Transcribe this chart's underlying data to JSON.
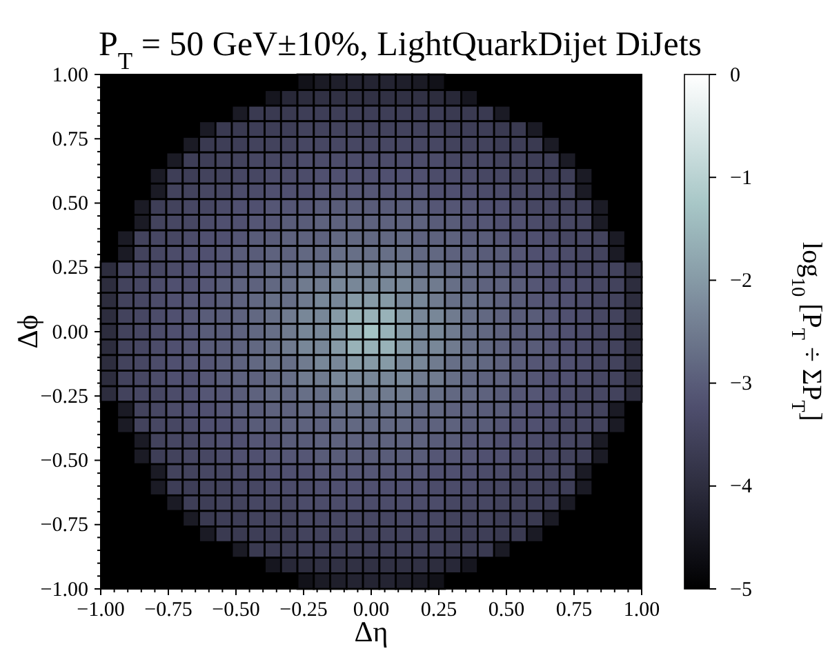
{
  "chart_data": {
    "type": "heatmap",
    "title": "P$_{T}$ = 50 GeV±10%, LightQuarkDijet DiJets",
    "xlabel": "Δη",
    "ylabel": "Δϕ",
    "clabel": "log$_{10}$ [P$_{T}$ ÷ ΣP$_{T}$]",
    "xlim": [
      -1,
      1
    ],
    "ylim": [
      -1,
      1
    ],
    "clim": [
      -5,
      0
    ],
    "cticks": [
      {
        "value": -5,
        "label": "−5"
      },
      {
        "value": -4,
        "label": "−4"
      },
      {
        "value": -3,
        "label": "−3"
      },
      {
        "value": -2,
        "label": "−2"
      },
      {
        "value": -1,
        "label": "−1"
      },
      0
    ],
    "xticks": [
      {
        "value": -1,
        "label": "−1.00"
      },
      {
        "value": -0.95,
        "label": null
      },
      {
        "value": -0.9,
        "label": null
      },
      {
        "value": -0.85,
        "label": null
      },
      {
        "value": -0.8,
        "label": null
      },
      {
        "value": -0.75,
        "label": "−0.75"
      },
      {
        "value": -0.7,
        "label": null
      },
      {
        "value": -0.65,
        "label": null
      },
      {
        "value": -0.6,
        "label": null
      },
      {
        "value": -0.55,
        "label": null
      },
      {
        "value": -0.5,
        "label": "−0.50"
      },
      {
        "value": -0.45,
        "label": null
      },
      {
        "value": -0.4,
        "label": null
      },
      {
        "value": -0.35,
        "label": null
      },
      {
        "value": -0.3,
        "label": null
      },
      {
        "value": -0.25,
        "label": "−0.25"
      },
      {
        "value": -0.2,
        "label": null
      },
      {
        "value": -0.15,
        "label": null
      },
      {
        "value": -0.1,
        "label": null
      },
      {
        "value": -0.05,
        "label": null
      },
      {
        "value": 0,
        "label": "0.00"
      },
      {
        "value": 0.05,
        "label": null
      },
      {
        "value": 0.1,
        "label": null
      },
      {
        "value": 0.15,
        "label": null
      },
      {
        "value": 0.2,
        "label": null
      },
      {
        "value": 0.25,
        "label": "0.25"
      },
      {
        "value": 0.3,
        "label": null
      },
      {
        "value": 0.35,
        "label": null
      },
      {
        "value": 0.4,
        "label": null
      },
      {
        "value": 0.45,
        "label": null
      },
      {
        "value": 0.5,
        "label": "0.50"
      },
      {
        "value": 0.55,
        "label": null
      },
      {
        "value": 0.6,
        "label": null
      },
      {
        "value": 0.65,
        "label": null
      },
      {
        "value": 0.7,
        "label": null
      },
      {
        "value": 0.75,
        "label": "0.75"
      },
      {
        "value": 0.8,
        "label": null
      },
      {
        "value": 0.85,
        "label": null
      },
      {
        "value": 0.9,
        "label": null
      },
      {
        "value": 0.95,
        "label": null
      },
      {
        "value": 1,
        "label": "1.00"
      }
    ],
    "yticks": [
      {
        "value": -1,
        "label": "−1.00"
      },
      {
        "value": -0.95,
        "label": null
      },
      {
        "value": -0.9,
        "label": null
      },
      {
        "value": -0.85,
        "label": null
      },
      {
        "value": -0.8,
        "label": null
      },
      {
        "value": -0.75,
        "label": "−0.75"
      },
      {
        "value": -0.7,
        "label": null
      },
      {
        "value": -0.65,
        "label": null
      },
      {
        "value": -0.6,
        "label": null
      },
      {
        "value": -0.55,
        "label": null
      },
      {
        "value": -0.5,
        "label": "−0.50"
      },
      {
        "value": -0.45,
        "label": null
      },
      {
        "value": -0.4,
        "label": null
      },
      {
        "value": -0.35,
        "label": null
      },
      {
        "value": -0.3,
        "label": null
      },
      {
        "value": -0.25,
        "label": "−0.25"
      },
      {
        "value": -0.2,
        "label": null
      },
      {
        "value": -0.15,
        "label": null
      },
      {
        "value": -0.1,
        "label": null
      },
      {
        "value": -0.05,
        "label": null
      },
      {
        "value": 0,
        "label": "0.00"
      },
      {
        "value": 0.05,
        "label": null
      },
      {
        "value": 0.1,
        "label": null
      },
      {
        "value": 0.15,
        "label": null
      },
      {
        "value": 0.2,
        "label": null
      },
      {
        "value": 0.25,
        "label": "0.25"
      },
      {
        "value": 0.3,
        "label": null
      },
      {
        "value": 0.35,
        "label": null
      },
      {
        "value": 0.4,
        "label": null
      },
      {
        "value": 0.45,
        "label": null
      },
      {
        "value": 0.5,
        "label": "0.50"
      },
      {
        "value": 0.55,
        "label": null
      },
      {
        "value": 0.6,
        "label": null
      },
      {
        "value": 0.65,
        "label": null
      },
      {
        "value": 0.7,
        "label": null
      },
      {
        "value": 0.75,
        "label": "0.75"
      },
      {
        "value": 0.8,
        "label": null
      },
      {
        "value": 0.85,
        "label": null
      },
      {
        "value": 0.9,
        "label": null
      },
      {
        "value": 0.95,
        "label": null
      },
      {
        "value": 1,
        "label": "1.00"
      }
    ],
    "cells": [
      [
        null,
        null,
        null,
        null,
        null,
        null,
        null,
        null,
        null,
        null,
        null,
        null,
        -4.6,
        -4.4,
        -4.3,
        -4.2,
        -4.2,
        -4.2,
        -4.3,
        -4.4,
        -4.6,
        null,
        null,
        null,
        null,
        null,
        null,
        null,
        null,
        null,
        null,
        null,
        null
      ],
      [
        null,
        null,
        null,
        null,
        null,
        null,
        null,
        null,
        null,
        null,
        -4.5,
        -4.1,
        -4.0,
        -3.9,
        -3.9,
        -3.9,
        -3.9,
        -3.9,
        -3.9,
        -3.9,
        -4.0,
        -4.1,
        -4.5,
        null,
        null,
        null,
        null,
        null,
        null,
        null,
        null,
        null,
        null
      ],
      [
        null,
        null,
        null,
        null,
        null,
        null,
        null,
        null,
        -4.4,
        -3.7,
        -3.7,
        -3.7,
        -3.6,
        -3.6,
        -3.6,
        -3.6,
        -3.6,
        -3.6,
        -3.6,
        -3.6,
        -3.6,
        -3.7,
        -3.7,
        -3.7,
        -4.4,
        null,
        null,
        null,
        null,
        null,
        null,
        null,
        null
      ],
      [
        null,
        null,
        null,
        null,
        null,
        null,
        -4.4,
        -3.7,
        -3.7,
        -3.6,
        -3.6,
        -3.6,
        -3.5,
        -3.5,
        -3.5,
        -3.5,
        -3.5,
        -3.5,
        -3.5,
        -3.5,
        -3.5,
        -3.6,
        -3.6,
        -3.6,
        -3.7,
        -3.7,
        -4.4,
        null,
        null,
        null,
        null,
        null,
        null
      ],
      [
        null,
        null,
        null,
        null,
        null,
        -4.4,
        -3.7,
        -3.6,
        -3.6,
        -3.5,
        -3.5,
        -3.5,
        -3.4,
        -3.4,
        -3.4,
        -3.4,
        -3.4,
        -3.4,
        -3.4,
        -3.4,
        -3.4,
        -3.5,
        -3.5,
        -3.5,
        -3.6,
        -3.6,
        -3.7,
        -4.4,
        null,
        null,
        null,
        null,
        null
      ],
      [
        null,
        null,
        null,
        null,
        -4.4,
        -3.6,
        -3.6,
        -3.5,
        -3.5,
        -3.4,
        -3.4,
        -3.4,
        -3.3,
        -3.3,
        -3.3,
        -3.3,
        -3.3,
        -3.3,
        -3.3,
        -3.3,
        -3.3,
        -3.4,
        -3.4,
        -3.4,
        -3.5,
        -3.5,
        -3.6,
        -3.6,
        -4.4,
        null,
        null,
        null,
        null
      ],
      [
        null,
        null,
        null,
        -4.4,
        -3.6,
        -3.6,
        -3.5,
        -3.5,
        -3.4,
        -3.4,
        -3.3,
        -3.3,
        -3.3,
        -3.2,
        -3.2,
        -3.2,
        -3.2,
        -3.2,
        -3.2,
        -3.2,
        -3.3,
        -3.3,
        -3.3,
        -3.4,
        -3.4,
        -3.5,
        -3.5,
        -3.6,
        -3.6,
        -4.4,
        null,
        null,
        null
      ],
      [
        null,
        null,
        null,
        -4.4,
        -3.5,
        -3.5,
        -3.4,
        -3.4,
        -3.3,
        -3.3,
        -3.2,
        -3.2,
        -3.2,
        -3.1,
        -3.1,
        -3.1,
        -3.1,
        -3.1,
        -3.1,
        -3.1,
        -3.2,
        -3.2,
        -3.2,
        -3.3,
        -3.3,
        -3.4,
        -3.4,
        -3.5,
        -3.5,
        -4.4,
        null,
        null,
        null
      ],
      [
        null,
        null,
        -4.4,
        -3.6,
        -3.5,
        -3.4,
        -3.4,
        -3.3,
        -3.2,
        -3.2,
        -3.1,
        -3.1,
        -3.1,
        -3.0,
        -3.0,
        -3.0,
        -3.0,
        -3.0,
        -3.0,
        -3.0,
        -3.1,
        -3.1,
        -3.1,
        -3.2,
        -3.2,
        -3.3,
        -3.4,
        -3.4,
        -3.5,
        -3.6,
        -4.4,
        null,
        null
      ],
      [
        null,
        null,
        -4.4,
        -3.5,
        -3.4,
        -3.4,
        -3.3,
        -3.2,
        -3.2,
        -3.1,
        -3.1,
        -3.0,
        -3.0,
        -2.9,
        -2.9,
        -2.9,
        -2.9,
        -2.9,
        -2.9,
        -2.9,
        -3.0,
        -3.0,
        -3.1,
        -3.1,
        -3.2,
        -3.2,
        -3.3,
        -3.4,
        -3.4,
        -3.5,
        -4.4,
        null,
        null
      ],
      [
        null,
        -4.4,
        -3.5,
        -3.4,
        -3.4,
        -3.3,
        -3.2,
        -3.2,
        -3.1,
        -3.0,
        -3.0,
        -2.9,
        -2.9,
        -2.9,
        -2.8,
        -2.8,
        -2.8,
        -2.8,
        -2.8,
        -2.9,
        -2.9,
        -2.9,
        -3.0,
        -3.0,
        -3.1,
        -3.2,
        -3.2,
        -3.3,
        -3.4,
        -3.4,
        -3.5,
        -4.4,
        null
      ],
      [
        null,
        -4.4,
        -3.5,
        -3.4,
        -3.3,
        -3.2,
        -3.2,
        -3.1,
        -3.0,
        -3.0,
        -2.9,
        -2.9,
        -2.8,
        -2.8,
        -2.7,
        -2.7,
        -2.7,
        -2.7,
        -2.7,
        -2.8,
        -2.8,
        -2.9,
        -2.9,
        -3.0,
        -3.0,
        -3.1,
        -3.2,
        -3.2,
        -3.3,
        -3.4,
        -3.5,
        -4.4,
        null
      ],
      [
        -4.0,
        -3.5,
        -3.4,
        -3.4,
        -3.3,
        -3.2,
        -3.1,
        -3.1,
        -3.0,
        -2.9,
        -2.8,
        -2.8,
        -2.7,
        -2.7,
        -2.5,
        -2.5,
        -2.5,
        -2.5,
        -2.5,
        -2.7,
        -2.7,
        -2.8,
        -2.8,
        -2.9,
        -3.0,
        -3.1,
        -3.1,
        -3.2,
        -3.3,
        -3.4,
        -3.4,
        -3.5,
        -4.0
      ],
      [
        -4.0,
        -3.5,
        -3.4,
        -3.3,
        -3.2,
        -3.2,
        -3.1,
        -3.0,
        -2.9,
        -2.9,
        -2.8,
        -2.7,
        -2.5,
        -2.5,
        -2.3,
        -2.3,
        -2.3,
        -2.3,
        -2.3,
        -2.5,
        -2.5,
        -2.7,
        -2.8,
        -2.9,
        -2.9,
        -3.0,
        -3.1,
        -3.2,
        -3.2,
        -3.3,
        -3.4,
        -3.5,
        -4.0
      ],
      [
        -4.0,
        -3.5,
        -3.4,
        -3.3,
        -3.2,
        -3.1,
        -3.1,
        -3.0,
        -2.9,
        -2.8,
        -2.7,
        -2.7,
        -2.5,
        -2.3,
        -2.3,
        -2.0,
        -2.0,
        -2.0,
        -2.3,
        -2.3,
        -2.5,
        -2.7,
        -2.7,
        -2.8,
        -2.9,
        -3.0,
        -3.1,
        -3.1,
        -3.2,
        -3.3,
        -3.4,
        -3.5,
        -4.0
      ],
      [
        -4.0,
        -3.5,
        -3.4,
        -3.3,
        -3.2,
        -3.1,
        -3.0,
        -3.0,
        -2.9,
        -2.8,
        -2.7,
        -2.5,
        -2.3,
        -2.3,
        -2.0,
        -1.6,
        -1.6,
        -1.6,
        -2.0,
        -2.3,
        -2.3,
        -2.5,
        -2.7,
        -2.8,
        -2.9,
        -3.0,
        -3.0,
        -3.1,
        -3.2,
        -3.3,
        -3.4,
        -3.5,
        -4.0
      ],
      [
        -4.0,
        -3.5,
        -3.4,
        -3.3,
        -3.2,
        -3.1,
        -3.0,
        -3.0,
        -2.9,
        -2.8,
        -2.7,
        -2.5,
        -2.3,
        -2.3,
        -2.0,
        -1.6,
        -1.3,
        -1.6,
        -2.0,
        -2.3,
        -2.3,
        -2.5,
        -2.7,
        -2.8,
        -2.9,
        -3.0,
        -3.0,
        -3.1,
        -3.2,
        -3.3,
        -3.4,
        -3.5,
        -4.0
      ],
      [
        -4.0,
        -3.5,
        -3.4,
        -3.3,
        -3.2,
        -3.1,
        -3.0,
        -3.0,
        -2.9,
        -2.8,
        -2.7,
        -2.5,
        -2.3,
        -2.3,
        -2.0,
        -1.6,
        -1.6,
        -1.6,
        -2.0,
        -2.3,
        -2.3,
        -2.5,
        -2.7,
        -2.8,
        -2.9,
        -3.0,
        -3.0,
        -3.1,
        -3.2,
        -3.3,
        -3.4,
        -3.5,
        -4.0
      ],
      [
        -4.0,
        -3.5,
        -3.4,
        -3.3,
        -3.2,
        -3.1,
        -3.1,
        -3.0,
        -2.9,
        -2.8,
        -2.7,
        -2.7,
        -2.5,
        -2.3,
        -2.3,
        -2.0,
        -2.0,
        -2.0,
        -2.3,
        -2.3,
        -2.5,
        -2.7,
        -2.7,
        -2.8,
        -2.9,
        -3.0,
        -3.1,
        -3.1,
        -3.2,
        -3.3,
        -3.4,
        -3.5,
        -4.0
      ],
      [
        -4.0,
        -3.5,
        -3.4,
        -3.3,
        -3.2,
        -3.2,
        -3.1,
        -3.0,
        -2.9,
        -2.9,
        -2.8,
        -2.7,
        -2.5,
        -2.5,
        -2.3,
        -2.3,
        -2.3,
        -2.3,
        -2.3,
        -2.5,
        -2.5,
        -2.7,
        -2.8,
        -2.9,
        -2.9,
        -3.0,
        -3.1,
        -3.2,
        -3.2,
        -3.3,
        -3.4,
        -3.5,
        -4.0
      ],
      [
        -4.0,
        -3.5,
        -3.4,
        -3.4,
        -3.3,
        -3.2,
        -3.1,
        -3.1,
        -3.0,
        -2.9,
        -2.8,
        -2.8,
        -2.7,
        -2.7,
        -2.5,
        -2.5,
        -2.5,
        -2.5,
        -2.5,
        -2.7,
        -2.7,
        -2.8,
        -2.8,
        -2.9,
        -3.0,
        -3.1,
        -3.1,
        -3.2,
        -3.3,
        -3.4,
        -3.4,
        -3.5,
        -4.0
      ],
      [
        null,
        -4.4,
        -3.5,
        -3.4,
        -3.3,
        -3.2,
        -3.2,
        -3.1,
        -3.0,
        -3.0,
        -2.9,
        -2.9,
        -2.8,
        -2.8,
        -2.7,
        -2.7,
        -2.7,
        -2.7,
        -2.7,
        -2.8,
        -2.8,
        -2.9,
        -2.9,
        -3.0,
        -3.0,
        -3.1,
        -3.2,
        -3.2,
        -3.3,
        -3.4,
        -3.5,
        -4.4,
        null
      ],
      [
        null,
        -4.4,
        -3.5,
        -3.4,
        -3.4,
        -3.3,
        -3.2,
        -3.2,
        -3.1,
        -3.0,
        -3.0,
        -2.9,
        -2.9,
        -2.9,
        -2.8,
        -2.8,
        -2.8,
        -2.8,
        -2.8,
        -2.9,
        -2.9,
        -2.9,
        -3.0,
        -3.0,
        -3.1,
        -3.2,
        -3.2,
        -3.3,
        -3.4,
        -3.4,
        -3.5,
        -4.4,
        null
      ],
      [
        null,
        null,
        -4.4,
        -3.5,
        -3.4,
        -3.4,
        -3.3,
        -3.2,
        -3.2,
        -3.1,
        -3.1,
        -3.0,
        -3.0,
        -2.9,
        -2.9,
        -2.9,
        -2.9,
        -2.9,
        -2.9,
        -2.9,
        -3.0,
        -3.0,
        -3.1,
        -3.1,
        -3.2,
        -3.2,
        -3.3,
        -3.4,
        -3.4,
        -3.5,
        -4.4,
        null,
        null
      ],
      [
        null,
        null,
        -4.4,
        -3.6,
        -3.5,
        -3.4,
        -3.4,
        -3.3,
        -3.2,
        -3.2,
        -3.1,
        -3.1,
        -3.1,
        -3.0,
        -3.0,
        -3.0,
        -3.0,
        -3.0,
        -3.0,
        -3.0,
        -3.1,
        -3.1,
        -3.1,
        -3.2,
        -3.2,
        -3.3,
        -3.4,
        -3.4,
        -3.5,
        -3.6,
        -4.4,
        null,
        null
      ],
      [
        null,
        null,
        null,
        -4.4,
        -3.5,
        -3.5,
        -3.4,
        -3.4,
        -3.3,
        -3.3,
        -3.2,
        -3.2,
        -3.2,
        -3.1,
        -3.1,
        -3.1,
        -3.1,
        -3.1,
        -3.1,
        -3.1,
        -3.2,
        -3.2,
        -3.2,
        -3.3,
        -3.3,
        -3.4,
        -3.4,
        -3.5,
        -3.5,
        -4.4,
        null,
        null,
        null
      ],
      [
        null,
        null,
        null,
        -4.4,
        -3.6,
        -3.6,
        -3.5,
        -3.5,
        -3.4,
        -3.4,
        -3.3,
        -3.3,
        -3.3,
        -3.2,
        -3.2,
        -3.2,
        -3.2,
        -3.2,
        -3.2,
        -3.2,
        -3.3,
        -3.3,
        -3.3,
        -3.4,
        -3.4,
        -3.5,
        -3.5,
        -3.6,
        -3.6,
        -4.4,
        null,
        null,
        null
      ],
      [
        null,
        null,
        null,
        null,
        -4.4,
        -3.6,
        -3.6,
        -3.5,
        -3.5,
        -3.4,
        -3.4,
        -3.4,
        -3.3,
        -3.3,
        -3.3,
        -3.3,
        -3.3,
        -3.3,
        -3.3,
        -3.3,
        -3.3,
        -3.4,
        -3.4,
        -3.4,
        -3.5,
        -3.5,
        -3.6,
        -3.6,
        -4.4,
        null,
        null,
        null,
        null
      ],
      [
        null,
        null,
        null,
        null,
        null,
        -4.4,
        -3.7,
        -3.6,
        -3.6,
        -3.5,
        -3.5,
        -3.5,
        -3.4,
        -3.4,
        -3.4,
        -3.4,
        -3.4,
        -3.4,
        -3.4,
        -3.4,
        -3.4,
        -3.5,
        -3.5,
        -3.5,
        -3.6,
        -3.6,
        -3.7,
        -4.4,
        null,
        null,
        null,
        null,
        null
      ],
      [
        null,
        null,
        null,
        null,
        null,
        null,
        -4.4,
        -3.7,
        -3.7,
        -3.6,
        -3.6,
        -3.6,
        -3.5,
        -3.5,
        -3.5,
        -3.5,
        -3.5,
        -3.5,
        -3.5,
        -3.5,
        -3.5,
        -3.6,
        -3.6,
        -3.6,
        -3.7,
        -3.7,
        -4.4,
        null,
        null,
        null,
        null,
        null,
        null
      ],
      [
        null,
        null,
        null,
        null,
        null,
        null,
        null,
        null,
        -4.4,
        -3.7,
        -3.7,
        -3.7,
        -3.6,
        -3.6,
        -3.6,
        -3.6,
        -3.6,
        -3.6,
        -3.6,
        -3.6,
        -3.6,
        -3.7,
        -3.7,
        -3.7,
        -4.4,
        null,
        null,
        null,
        null,
        null,
        null,
        null,
        null
      ],
      [
        null,
        null,
        null,
        null,
        null,
        null,
        null,
        null,
        null,
        null,
        -4.5,
        -4.1,
        -4.0,
        -3.9,
        -3.9,
        -3.9,
        -3.9,
        -3.9,
        -3.9,
        -3.9,
        -4.0,
        -4.1,
        -4.5,
        null,
        null,
        null,
        null,
        null,
        null,
        null,
        null,
        null,
        null
      ],
      [
        null,
        null,
        null,
        null,
        null,
        null,
        null,
        null,
        null,
        null,
        null,
        null,
        -4.6,
        -4.4,
        -4.3,
        -4.2,
        -4.2,
        -4.2,
        -4.3,
        -4.4,
        -4.6,
        null,
        null,
        null,
        null,
        null,
        null,
        null,
        null,
        null,
        null,
        null,
        null
      ]
    ]
  }
}
